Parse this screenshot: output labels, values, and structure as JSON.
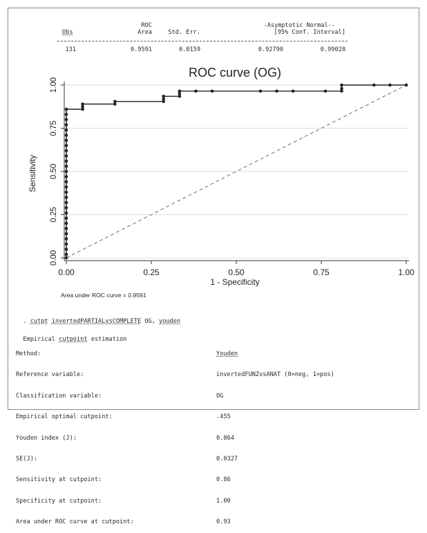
{
  "stats_table": {
    "headers": {
      "obs": "Obs",
      "roc_area_top": "ROC",
      "roc_area_bottom": "Area",
      "std_err": "Std. Err.",
      "ci_top": "-Asymptotic Normal--",
      "ci_bottom": "[95% Conf. Interval]"
    },
    "values": {
      "obs": "131",
      "roc_area": "0.9591",
      "std_err": "0.0159",
      "ci_low": "0.92790",
      "ci_high": "0.99028"
    }
  },
  "chart_data": {
    "type": "line",
    "title": "ROC curve (OG)",
    "xlabel": "1 - Specificity",
    "ylabel": "Sensitivity",
    "xlim": [
      0,
      1
    ],
    "ylim": [
      0,
      1
    ],
    "x_ticks": [
      "0.00",
      "0.25",
      "0.50",
      "0.75",
      "1.00"
    ],
    "y_ticks": [
      "0.00",
      "0.25",
      "0.50",
      "0.75",
      "1.00"
    ],
    "grid": "horizontal",
    "note": "Area under ROC curve = 0.9591",
    "reference_line": [
      [
        0,
        0
      ],
      [
        1,
        1
      ]
    ],
    "colors": {
      "curve": "#222222",
      "reference": "#777777",
      "grid": "#dddddd"
    },
    "series": [
      {
        "points": [
          [
            0.0,
            0.0
          ],
          [
            0.0,
            0.02
          ],
          [
            0.0,
            0.05
          ],
          [
            0.0,
            0.08
          ],
          [
            0.0,
            0.11
          ],
          [
            0.0,
            0.14
          ],
          [
            0.0,
            0.17
          ],
          [
            0.0,
            0.2
          ],
          [
            0.0,
            0.23
          ],
          [
            0.0,
            0.26
          ],
          [
            0.0,
            0.29
          ],
          [
            0.0,
            0.32
          ],
          [
            0.0,
            0.35
          ],
          [
            0.0,
            0.38
          ],
          [
            0.0,
            0.41
          ],
          [
            0.0,
            0.44
          ],
          [
            0.0,
            0.47
          ],
          [
            0.0,
            0.5
          ],
          [
            0.0,
            0.53
          ],
          [
            0.0,
            0.56
          ],
          [
            0.0,
            0.59
          ],
          [
            0.0,
            0.62
          ],
          [
            0.0,
            0.65
          ],
          [
            0.0,
            0.68
          ],
          [
            0.0,
            0.71
          ],
          [
            0.0,
            0.74
          ],
          [
            0.0,
            0.77
          ],
          [
            0.0,
            0.8
          ],
          [
            0.0,
            0.83
          ],
          [
            0.0,
            0.86
          ],
          [
            0.048,
            0.86
          ],
          [
            0.048,
            0.875
          ],
          [
            0.048,
            0.89
          ],
          [
            0.143,
            0.89
          ],
          [
            0.143,
            0.905
          ],
          [
            0.286,
            0.905
          ],
          [
            0.286,
            0.92
          ],
          [
            0.286,
            0.935
          ],
          [
            0.333,
            0.935
          ],
          [
            0.333,
            0.95
          ],
          [
            0.333,
            0.965
          ],
          [
            0.381,
            0.965
          ],
          [
            0.429,
            0.965
          ],
          [
            0.571,
            0.965
          ],
          [
            0.619,
            0.965
          ],
          [
            0.667,
            0.965
          ],
          [
            0.762,
            0.965
          ],
          [
            0.81,
            0.965
          ],
          [
            0.81,
            0.98
          ],
          [
            0.81,
            1.0
          ],
          [
            0.905,
            1.0
          ],
          [
            0.952,
            1.0
          ],
          [
            1.0,
            1.0
          ]
        ]
      }
    ]
  },
  "log": {
    "command_prefix": ". ",
    "command_tokens": [
      "cutpt",
      " ",
      "invertedPARTIALvsCOMPLETE",
      " OG, ",
      "youden"
    ],
    "heading_words": [
      "Empirical ",
      "cutpoint",
      " estimation"
    ],
    "rows": [
      {
        "label": "Method:",
        "value": "Youden"
      },
      {
        "label": "Reference variable:",
        "value": "invertedFUNZvsANAT (0=neg, 1=pos)"
      },
      {
        "label": "Classification variable:",
        "value": "OG"
      },
      {
        "label": "Empirical optimal cutpoint:",
        "value": ".455"
      },
      {
        "label": "Youden index (J):",
        "value": "0.864"
      },
      {
        "label": "SE(J):",
        "value": "0.0327"
      },
      {
        "label": "Sensitivity at cutpoint:",
        "value": "0.86"
      },
      {
        "label": "Specificity at cutpoint:",
        "value": "1.00"
      },
      {
        "label": "Area under ROC curve at cutpoint:",
        "value": "0.93"
      }
    ]
  }
}
